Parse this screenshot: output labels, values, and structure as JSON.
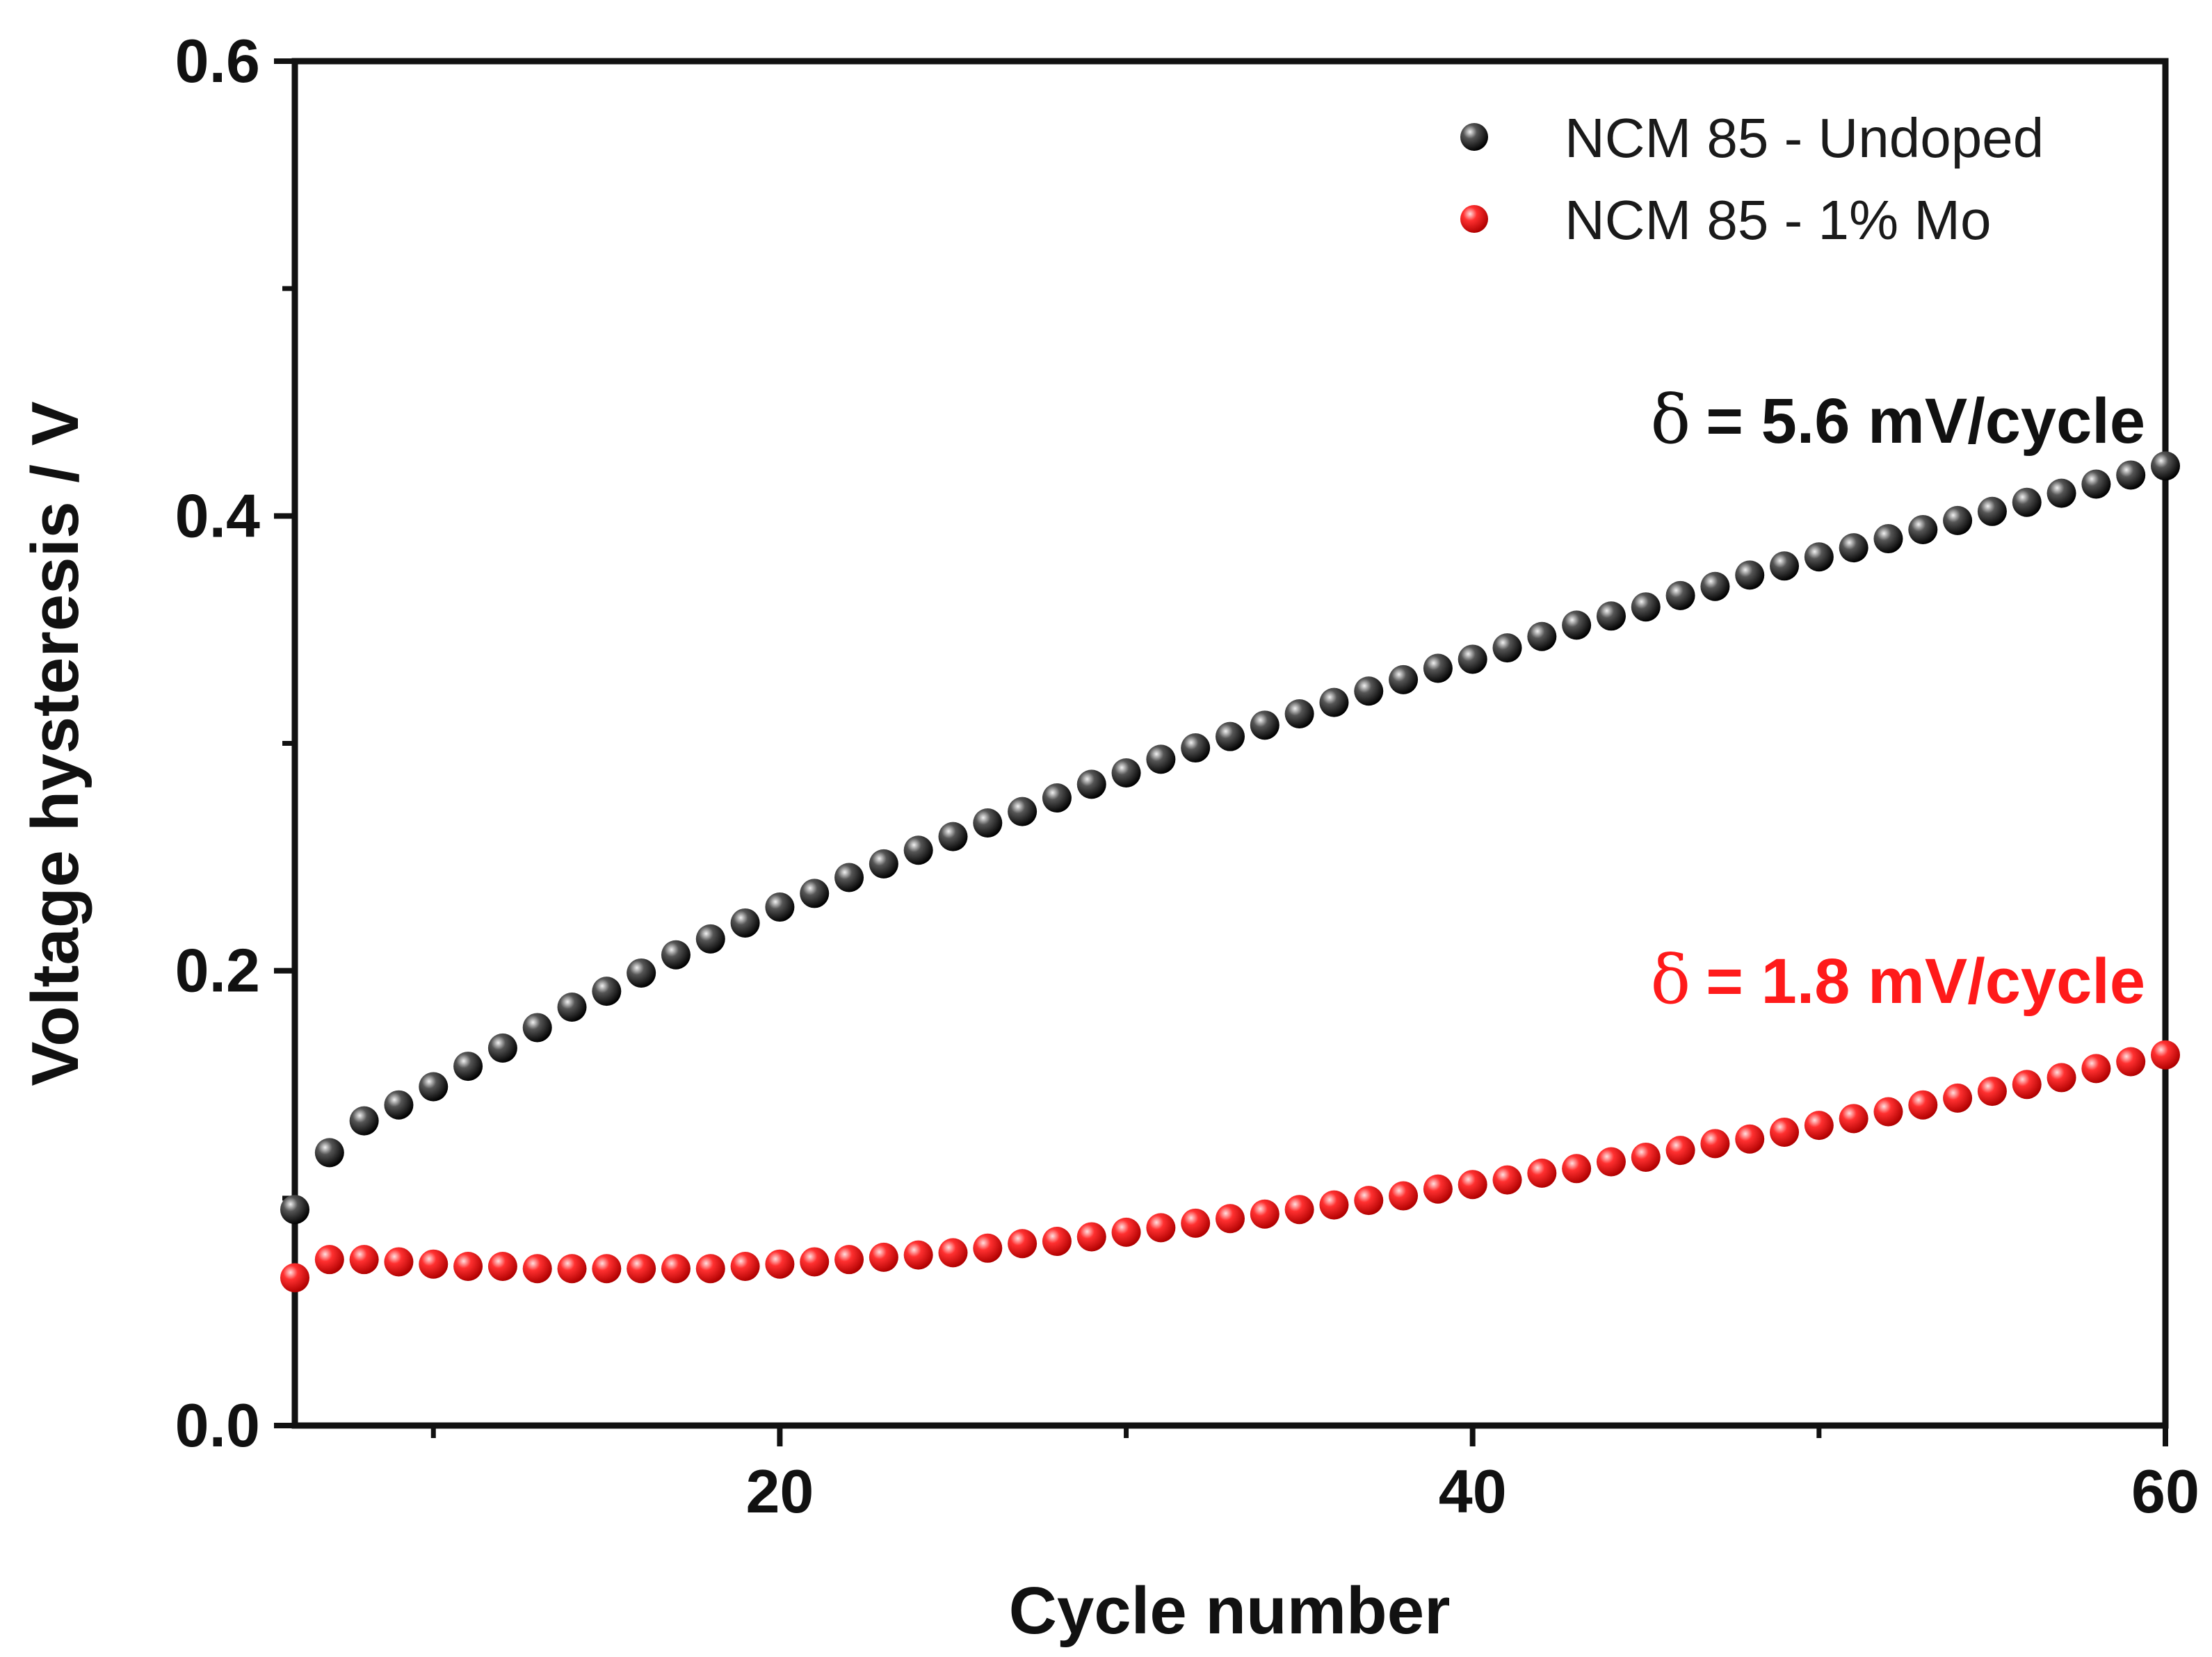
{
  "chart_data": {
    "type": "scatter",
    "title": "",
    "xlabel": "Cycle number",
    "ylabel": "Voltage hysteresis / V",
    "xlim": [
      6,
      60
    ],
    "ylim": [
      0,
      0.6
    ],
    "x_major_ticks": [
      20,
      40,
      60
    ],
    "x_minor_ticks": [
      10,
      30,
      50
    ],
    "y_major_ticks": [
      0.0,
      0.2,
      0.4,
      0.6
    ],
    "y_minor_ticks": [
      0.1,
      0.3,
      0.5
    ],
    "x_tick_labels": [
      "20",
      "40",
      "60"
    ],
    "y_tick_labels": [
      "0.0",
      "0.2",
      "0.4",
      "0.6"
    ],
    "grid": false,
    "legend_position": "top-right",
    "series": [
      {
        "name": "NCM 85 - Undoped",
        "color": "#111111",
        "x": [
          6,
          7,
          8,
          9,
          10,
          11,
          12,
          13,
          14,
          15,
          16,
          17,
          18,
          19,
          20,
          21,
          22,
          23,
          24,
          25,
          26,
          27,
          28,
          29,
          30,
          31,
          32,
          33,
          34,
          35,
          36,
          37,
          38,
          39,
          40,
          41,
          42,
          43,
          44,
          45,
          46,
          47,
          48,
          49,
          50,
          51,
          52,
          53,
          54,
          55,
          56,
          57,
          58,
          59,
          60
        ],
        "values": [
          0.095,
          0.12,
          0.134,
          0.141,
          0.149,
          0.158,
          0.166,
          0.175,
          0.184,
          0.191,
          0.199,
          0.207,
          0.214,
          0.221,
          0.228,
          0.234,
          0.241,
          0.247,
          0.253,
          0.259,
          0.265,
          0.27,
          0.276,
          0.282,
          0.287,
          0.293,
          0.298,
          0.303,
          0.308,
          0.313,
          0.318,
          0.323,
          0.328,
          0.333,
          0.337,
          0.342,
          0.347,
          0.352,
          0.356,
          0.36,
          0.365,
          0.369,
          0.374,
          0.378,
          0.382,
          0.386,
          0.39,
          0.394,
          0.398,
          0.402,
          0.406,
          0.41,
          0.414,
          0.418,
          0.422
        ]
      },
      {
        "name": "NCM 85 - 1% Mo",
        "color": "#ff1a1a",
        "x": [
          6,
          7,
          8,
          9,
          10,
          11,
          12,
          13,
          14,
          15,
          16,
          17,
          18,
          19,
          20,
          21,
          22,
          23,
          24,
          25,
          26,
          27,
          28,
          29,
          30,
          31,
          32,
          33,
          34,
          35,
          36,
          37,
          38,
          39,
          40,
          41,
          42,
          43,
          44,
          45,
          46,
          47,
          48,
          49,
          50,
          51,
          52,
          53,
          54,
          55,
          56,
          57,
          58,
          59,
          60
        ],
        "values": [
          0.065,
          0.073,
          0.073,
          0.072,
          0.071,
          0.07,
          0.07,
          0.069,
          0.069,
          0.069,
          0.069,
          0.069,
          0.069,
          0.07,
          0.071,
          0.072,
          0.073,
          0.074,
          0.075,
          0.076,
          0.078,
          0.08,
          0.081,
          0.083,
          0.085,
          0.087,
          0.089,
          0.091,
          0.093,
          0.095,
          0.097,
          0.099,
          0.101,
          0.104,
          0.106,
          0.108,
          0.111,
          0.113,
          0.116,
          0.118,
          0.121,
          0.124,
          0.126,
          0.129,
          0.132,
          0.135,
          0.138,
          0.141,
          0.144,
          0.147,
          0.15,
          0.153,
          0.157,
          0.16,
          0.163
        ]
      }
    ],
    "annotations": [
      {
        "delta": "δ",
        "text": "= 5.6 mV/cycle",
        "color": "#111111"
      },
      {
        "delta": "δ",
        "text": "= 1.8 mV/cycle",
        "color": "#ff1a1a"
      }
    ]
  }
}
